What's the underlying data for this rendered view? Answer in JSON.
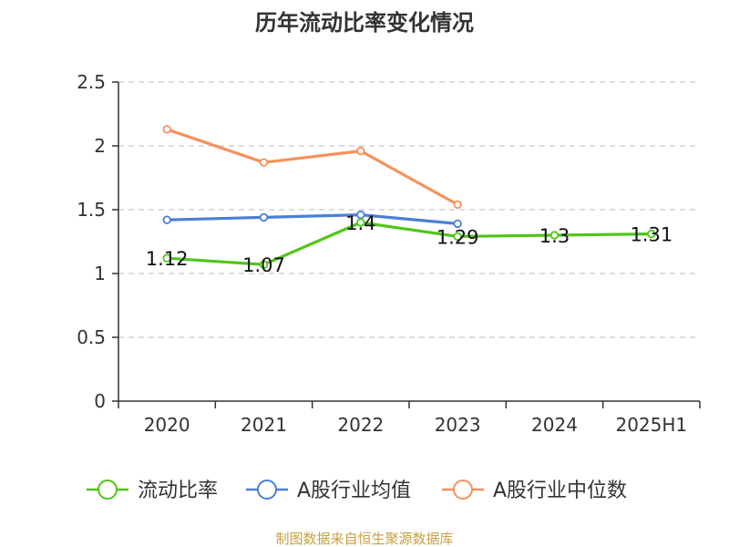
{
  "chart_data": {
    "type": "line",
    "title": "历年流动比率变化情况",
    "categories": [
      "2020",
      "2021",
      "2022",
      "2023",
      "2024",
      "2025H1"
    ],
    "ylim": [
      0,
      2.5
    ],
    "yticks": [
      "0",
      "0.5",
      "1",
      "1.5",
      "2",
      "2.5"
    ],
    "grid": true,
    "legend_position": "bottom",
    "series": [
      {
        "name": "流动比率",
        "color": "#52c41a",
        "values": [
          1.12,
          1.07,
          1.4,
          1.29,
          1.3,
          1.31
        ],
        "labels": [
          "1.12",
          "1.07",
          "1.4",
          "1.29",
          "1.3",
          "1.31"
        ]
      },
      {
        "name": "A股行业均值",
        "color": "#4a7fd6",
        "values": [
          1.42,
          1.44,
          1.46,
          1.39,
          null,
          null
        ]
      },
      {
        "name": "A股行业中位数",
        "color": "#f5915a",
        "values": [
          2.13,
          1.87,
          1.96,
          1.54,
          null,
          null
        ]
      }
    ]
  },
  "footer": {
    "source": "制图数据来自恒生聚源数据库"
  }
}
